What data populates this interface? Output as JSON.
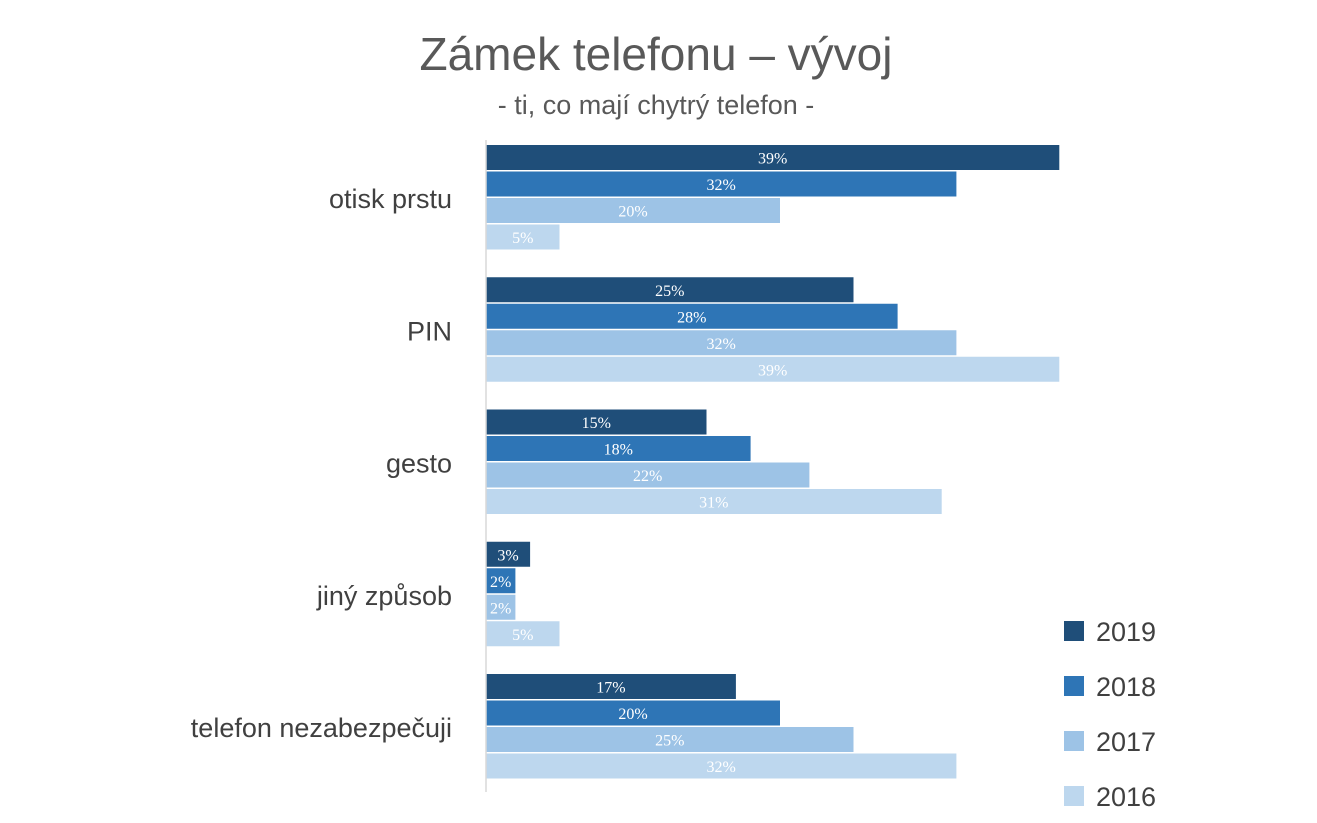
{
  "chart_data": {
    "type": "bar",
    "orientation": "horizontal",
    "title": "Zámek telefonu – vývoj",
    "subtitle": "- ti, co mají chytrý telefon -",
    "categories": [
      "otisk prstu",
      "PIN",
      "gesto",
      "jiný způsob",
      "telefon nezabezpečuji"
    ],
    "series": [
      {
        "name": "2019",
        "values": [
          39,
          25,
          15,
          3,
          17
        ],
        "labels": [
          "39%",
          "25%",
          "15%",
          "3%",
          "17%"
        ],
        "color": "#1F4E79"
      },
      {
        "name": "2018",
        "values": [
          32,
          28,
          18,
          2,
          20
        ],
        "labels": [
          "32%",
          "28%",
          "18%",
          "2%",
          "20%"
        ],
        "color": "#2E75B6"
      },
      {
        "name": "2017",
        "values": [
          20,
          32,
          22,
          2,
          25
        ],
        "labels": [
          "20%",
          "32%",
          "22%",
          "2%",
          "25%"
        ],
        "color": "#9DC3E6"
      },
      {
        "name": "2016",
        "values": [
          5,
          39,
          31,
          5,
          32
        ],
        "labels": [
          "5%",
          "39%",
          "31%",
          "5%",
          "32%"
        ],
        "color": "#BDD7EE"
      }
    ],
    "xlim": [
      0,
      40
    ],
    "grid": false,
    "legend_position": "bottom-right",
    "axis_color": "#D9D9D9"
  }
}
